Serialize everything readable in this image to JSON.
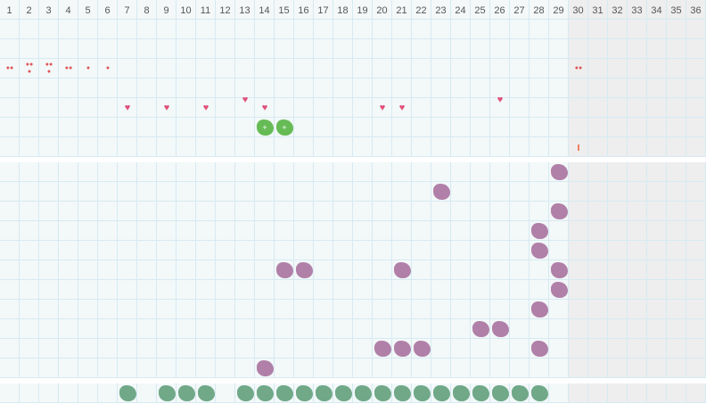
{
  "days": [
    "1",
    "2",
    "3",
    "4",
    "5",
    "6",
    "7",
    "8",
    "9",
    "10",
    "11",
    "12",
    "13",
    "14",
    "15",
    "16",
    "17",
    "18",
    "19",
    "20",
    "21",
    "22",
    "23",
    "24",
    "25",
    "26",
    "27",
    "28",
    "29",
    "30",
    "31",
    "32",
    "33",
    "34",
    "35",
    "36"
  ],
  "current_day": 30,
  "colors": {
    "bleeding": "#e05555",
    "heart": "#e0507a",
    "green": "#66bb55",
    "purple": "#b080a8",
    "teal": "#70a888",
    "future": "#eeeeee",
    "grid": "#d6eaf2"
  },
  "sections": [
    {
      "name": "top",
      "rows": 7,
      "markers": [
        {
          "type": "drop",
          "icon": "bleeding-drop-icon",
          "count": 2,
          "day": 1,
          "row": 2
        },
        {
          "type": "drop",
          "icon": "bleeding-drop-icon",
          "count": 3,
          "day": 2,
          "row": 2
        },
        {
          "type": "drop",
          "icon": "bleeding-drop-icon",
          "count": 3,
          "day": 3,
          "row": 2
        },
        {
          "type": "drop",
          "icon": "bleeding-drop-icon",
          "count": 2,
          "day": 4,
          "row": 2
        },
        {
          "type": "drop",
          "icon": "bleeding-drop-icon",
          "count": 1,
          "day": 5,
          "row": 2
        },
        {
          "type": "drop",
          "icon": "bleeding-drop-icon",
          "count": 1,
          "day": 6,
          "row": 2
        },
        {
          "type": "drop",
          "icon": "bleeding-drop-icon",
          "count": 2,
          "day": 30,
          "row": 2
        },
        {
          "type": "heart",
          "icon": "heart-icon",
          "day": 7,
          "row": 4
        },
        {
          "type": "heart",
          "icon": "heart-icon",
          "day": 9,
          "row": 4
        },
        {
          "type": "heart",
          "icon": "heart-icon",
          "day": 11,
          "row": 4
        },
        {
          "type": "heart",
          "icon": "heart-icon",
          "day": 13,
          "row": 4,
          "high": true
        },
        {
          "type": "heart",
          "icon": "heart-icon",
          "day": 14,
          "row": 4
        },
        {
          "type": "heart",
          "icon": "heart-icon",
          "day": 20,
          "row": 4
        },
        {
          "type": "heart",
          "icon": "heart-icon",
          "day": 21,
          "row": 4
        },
        {
          "type": "heart",
          "icon": "heart-icon",
          "day": 26,
          "row": 4,
          "high": true
        },
        {
          "type": "green",
          "icon": "green-plus-blob-icon",
          "day": 14,
          "row": 5
        },
        {
          "type": "green",
          "icon": "green-plus-blob-icon",
          "day": 15,
          "row": 5
        },
        {
          "type": "tick",
          "icon": "today-tick-icon",
          "day": 30,
          "row": 6
        }
      ]
    },
    {
      "name": "middle",
      "rows": 11,
      "markers": [
        {
          "type": "purple",
          "icon": "purple-blob-icon",
          "day": 29,
          "row": 0
        },
        {
          "type": "purple",
          "icon": "purple-blob-icon",
          "day": 23,
          "row": 1
        },
        {
          "type": "purple",
          "icon": "purple-blob-icon",
          "day": 29,
          "row": 2
        },
        {
          "type": "purple",
          "icon": "purple-blob-icon",
          "day": 28,
          "row": 3
        },
        {
          "type": "purple",
          "icon": "purple-blob-icon",
          "day": 28,
          "row": 4
        },
        {
          "type": "purple",
          "icon": "purple-blob-icon",
          "day": 15,
          "row": 5
        },
        {
          "type": "purple",
          "icon": "purple-blob-icon",
          "day": 16,
          "row": 5
        },
        {
          "type": "purple",
          "icon": "purple-blob-icon",
          "day": 21,
          "row": 5
        },
        {
          "type": "purple",
          "icon": "purple-blob-icon",
          "day": 29,
          "row": 5
        },
        {
          "type": "purple",
          "icon": "purple-blob-icon",
          "day": 29,
          "row": 6
        },
        {
          "type": "purple",
          "icon": "purple-blob-icon",
          "day": 28,
          "row": 7
        },
        {
          "type": "purple",
          "icon": "purple-blob-icon",
          "day": 25,
          "row": 8
        },
        {
          "type": "purple",
          "icon": "purple-blob-icon",
          "day": 26,
          "row": 8
        },
        {
          "type": "purple",
          "icon": "purple-blob-icon",
          "day": 20,
          "row": 9
        },
        {
          "type": "purple",
          "icon": "purple-blob-icon",
          "day": 21,
          "row": 9
        },
        {
          "type": "purple",
          "icon": "purple-blob-icon",
          "day": 22,
          "row": 9
        },
        {
          "type": "purple",
          "icon": "purple-blob-icon",
          "day": 28,
          "row": 9
        },
        {
          "type": "purple",
          "icon": "purple-blob-icon",
          "day": 14,
          "row": 10
        }
      ]
    },
    {
      "name": "bottom",
      "rows": 1,
      "markers": [
        {
          "type": "teal",
          "icon": "teal-blob-icon",
          "day": 7,
          "row": 0
        },
        {
          "type": "teal",
          "icon": "teal-blob-icon",
          "day": 9,
          "row": 0
        },
        {
          "type": "teal",
          "icon": "teal-blob-icon",
          "day": 10,
          "row": 0
        },
        {
          "type": "teal",
          "icon": "teal-blob-icon",
          "day": 11,
          "row": 0
        },
        {
          "type": "teal",
          "icon": "teal-blob-icon",
          "day": 13,
          "row": 0
        },
        {
          "type": "teal",
          "icon": "teal-blob-icon",
          "day": 14,
          "row": 0
        },
        {
          "type": "teal",
          "icon": "teal-blob-icon",
          "day": 15,
          "row": 0
        },
        {
          "type": "teal",
          "icon": "teal-blob-icon",
          "day": 16,
          "row": 0
        },
        {
          "type": "teal",
          "icon": "teal-blob-icon",
          "day": 17,
          "row": 0
        },
        {
          "type": "teal",
          "icon": "teal-blob-icon",
          "day": 18,
          "row": 0
        },
        {
          "type": "teal",
          "icon": "teal-blob-icon",
          "day": 19,
          "row": 0
        },
        {
          "type": "teal",
          "icon": "teal-blob-icon",
          "day": 20,
          "row": 0
        },
        {
          "type": "teal",
          "icon": "teal-blob-icon",
          "day": 21,
          "row": 0
        },
        {
          "type": "teal",
          "icon": "teal-blob-icon",
          "day": 22,
          "row": 0
        },
        {
          "type": "teal",
          "icon": "teal-blob-icon",
          "day": 23,
          "row": 0
        },
        {
          "type": "teal",
          "icon": "teal-blob-icon",
          "day": 24,
          "row": 0
        },
        {
          "type": "teal",
          "icon": "teal-blob-icon",
          "day": 25,
          "row": 0
        },
        {
          "type": "teal",
          "icon": "teal-blob-icon",
          "day": 26,
          "row": 0
        },
        {
          "type": "teal",
          "icon": "teal-blob-icon",
          "day": 27,
          "row": 0
        },
        {
          "type": "teal",
          "icon": "teal-blob-icon",
          "day": 28,
          "row": 0
        }
      ]
    }
  ]
}
